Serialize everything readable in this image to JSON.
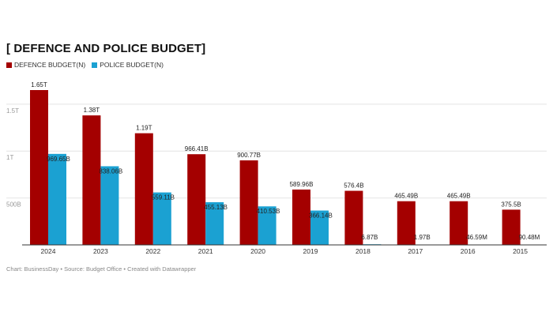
{
  "chart_data": {
    "type": "bar",
    "title": "[ DEFENCE AND POLICE BUDGET]",
    "categories": [
      "2024",
      "2023",
      "2022",
      "2021",
      "2020",
      "2019",
      "2018",
      "2017",
      "2016",
      "2015"
    ],
    "series": [
      {
        "name": "DEFENCE BUDGET(N)",
        "color": "#a40000",
        "values": [
          1650000000000,
          1380000000000,
          1190000000000,
          966410000000,
          900770000000,
          589960000000,
          576400000000,
          465490000000,
          465490000000,
          375500000000
        ],
        "labels": [
          "1.65T",
          "1.38T",
          "1.19T",
          "966.41B",
          "900.77B",
          "589.96B",
          "576.4B",
          "465.49B",
          "465.49B",
          "375.5B"
        ]
      },
      {
        "name": "POLICE BUDGET(N)",
        "color": "#1ba1d2",
        "values": [
          969650000000,
          838060000000,
          559110000000,
          455130000000,
          410530000000,
          366140000000,
          6870000000,
          1970000000,
          46590000,
          90480000
        ],
        "labels": [
          "969.65B",
          "838.06B",
          "559.11B",
          "455.13B",
          "410.53B",
          "366.14B",
          "6.87B",
          "1.97B",
          "46.59M",
          "90.48M"
        ]
      }
    ],
    "yticks": [
      0,
      500000000000,
      1000000000000,
      1500000000000
    ],
    "ytick_labels": [
      "",
      "500B",
      "1T",
      "1.5T"
    ],
    "ylim": [
      0,
      1650000000000
    ],
    "xlabel": "",
    "ylabel": "",
    "grid": true,
    "legend": "top-left"
  },
  "footer": "Chart: BusinessDay • Source: Budget Office • Created with Datawrapper"
}
